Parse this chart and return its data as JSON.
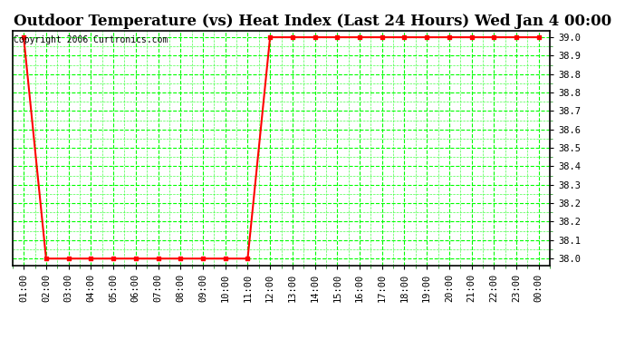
{
  "title": "Outdoor Temperature (vs) Heat Index (Last 24 Hours) Wed Jan 4 00:00",
  "copyright": "Copyright 2006 Curtronics.com",
  "x_labels": [
    "01:00",
    "02:00",
    "03:00",
    "04:00",
    "05:00",
    "06:00",
    "07:00",
    "08:00",
    "09:00",
    "10:00",
    "11:00",
    "12:00",
    "13:00",
    "14:00",
    "15:00",
    "16:00",
    "17:00",
    "18:00",
    "19:00",
    "20:00",
    "21:00",
    "22:00",
    "23:00",
    "00:00"
  ],
  "y_values": [
    39.0,
    38.0,
    38.0,
    38.0,
    38.0,
    38.0,
    38.0,
    38.0,
    38.0,
    38.0,
    38.0,
    39.0,
    39.0,
    39.0,
    39.0,
    39.0,
    39.0,
    39.0,
    39.0,
    39.0,
    39.0,
    39.0,
    39.0,
    39.0
  ],
  "y_tick_positions": [
    38.0,
    38.083333,
    38.166667,
    38.25,
    38.333333,
    38.416667,
    38.5,
    38.583333,
    38.666667,
    38.75,
    38.833333,
    38.916667,
    39.0
  ],
  "y_tick_labels": [
    "38.0",
    "38.1",
    "38.2",
    "38.2",
    "38.3",
    "38.4",
    "38.5",
    "38.6",
    "38.7",
    "38.8",
    "38.8",
    "38.9",
    "39.0"
  ],
  "ylim": [
    37.97,
    39.03
  ],
  "line_color": "#ff0000",
  "marker": "s",
  "marker_size": 2.5,
  "grid_color": "#00ff00",
  "grid_style": "--",
  "background_color": "#ffffff",
  "plot_bg_color": "#ffffff",
  "title_fontsize": 12,
  "tick_fontsize": 7.5,
  "copyright_fontsize": 7,
  "border_color": "#000000",
  "fig_width": 6.9,
  "fig_height": 3.75
}
